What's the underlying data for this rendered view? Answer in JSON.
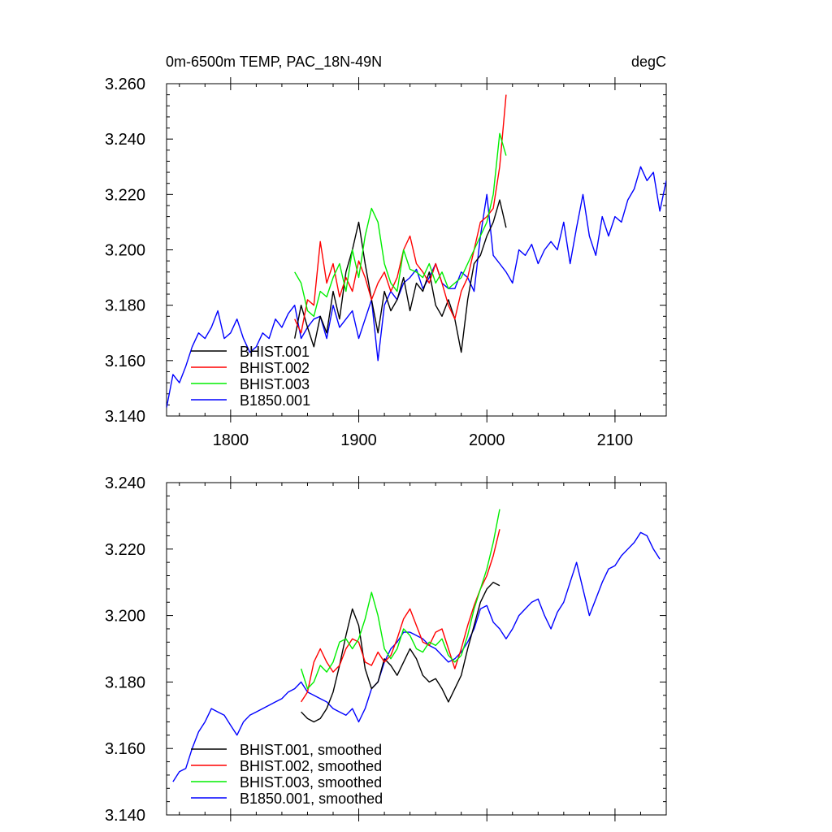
{
  "colors": {
    "BHIST.001": "#000000",
    "BHIST.002": "#ff0000",
    "BHIST.003": "#00ee00",
    "B1850.001": "#0000ff"
  },
  "chart_data": [
    {
      "type": "line",
      "title": "0m-6500m TEMP, PAC_18N-49N",
      "units": "degC",
      "xlim": [
        1750,
        2140
      ],
      "ylim": [
        3.14,
        3.26
      ],
      "x_ticks": [
        1800,
        1900,
        2000,
        2100
      ],
      "x_tick_labels": [
        "1800",
        "1900",
        "2000",
        "2100"
      ],
      "y_ticks": [
        3.14,
        3.16,
        3.18,
        3.2,
        3.22,
        3.24,
        3.26
      ],
      "y_tick_labels": [
        "3.140",
        "3.160",
        "3.180",
        "3.200",
        "3.220",
        "3.240",
        "3.260"
      ],
      "legend_position": "bottom-left",
      "series": [
        {
          "name": "BHIST.001",
          "x": [
            1850,
            1855,
            1860,
            1865,
            1870,
            1875,
            1880,
            1885,
            1890,
            1895,
            1900,
            1905,
            1910,
            1915,
            1920,
            1925,
            1930,
            1935,
            1940,
            1945,
            1950,
            1955,
            1960,
            1965,
            1970,
            1975,
            1980,
            1985,
            1990,
            1995,
            2000,
            2005,
            2010,
            2015
          ],
          "y": [
            3.168,
            3.18,
            3.172,
            3.165,
            3.176,
            3.17,
            3.185,
            3.175,
            3.192,
            3.2,
            3.21,
            3.195,
            3.182,
            3.17,
            3.185,
            3.178,
            3.182,
            3.19,
            3.178,
            3.188,
            3.185,
            3.192,
            3.18,
            3.176,
            3.182,
            3.175,
            3.163,
            3.182,
            3.195,
            3.198,
            3.205,
            3.21,
            3.218,
            3.208
          ]
        },
        {
          "name": "BHIST.002",
          "x": [
            1850,
            1855,
            1860,
            1865,
            1870,
            1875,
            1880,
            1885,
            1890,
            1895,
            1900,
            1905,
            1910,
            1915,
            1920,
            1925,
            1930,
            1935,
            1940,
            1945,
            1950,
            1955,
            1960,
            1965,
            1970,
            1975,
            1980,
            1985,
            1990,
            1995,
            2000,
            2005,
            2010,
            2015
          ],
          "y": [
            3.175,
            3.17,
            3.182,
            3.18,
            3.203,
            3.188,
            3.195,
            3.183,
            3.19,
            3.185,
            3.196,
            3.19,
            3.182,
            3.188,
            3.192,
            3.185,
            3.19,
            3.2,
            3.205,
            3.195,
            3.192,
            3.188,
            3.195,
            3.188,
            3.18,
            3.175,
            3.185,
            3.19,
            3.2,
            3.21,
            3.212,
            3.215,
            3.23,
            3.256
          ]
        },
        {
          "name": "BHIST.003",
          "x": [
            1850,
            1855,
            1860,
            1865,
            1870,
            1875,
            1880,
            1885,
            1890,
            1895,
            1900,
            1905,
            1910,
            1915,
            1920,
            1925,
            1930,
            1935,
            1940,
            1945,
            1950,
            1955,
            1960,
            1965,
            1970,
            1975,
            1980,
            1985,
            1990,
            1995,
            2000,
            2005,
            2010,
            2015
          ],
          "y": [
            3.192,
            3.188,
            3.178,
            3.176,
            3.185,
            3.183,
            3.19,
            3.195,
            3.185,
            3.2,
            3.19,
            3.205,
            3.215,
            3.21,
            3.195,
            3.188,
            3.185,
            3.2,
            3.193,
            3.192,
            3.19,
            3.195,
            3.188,
            3.192,
            3.186,
            3.188,
            3.19,
            3.195,
            3.2,
            3.205,
            3.21,
            3.22,
            3.242,
            3.234
          ]
        },
        {
          "name": "B1850.001",
          "x": [
            1750,
            1755,
            1760,
            1765,
            1770,
            1775,
            1780,
            1785,
            1790,
            1795,
            1800,
            1805,
            1810,
            1815,
            1820,
            1825,
            1830,
            1835,
            1840,
            1845,
            1850,
            1855,
            1860,
            1865,
            1870,
            1875,
            1880,
            1885,
            1890,
            1895,
            1900,
            1905,
            1910,
            1915,
            1920,
            1925,
            1930,
            1935,
            1940,
            1945,
            1950,
            1955,
            1960,
            1965,
            1970,
            1975,
            1980,
            1985,
            1990,
            1995,
            2000,
            2005,
            2010,
            2015,
            2020,
            2025,
            2030,
            2035,
            2040,
            2045,
            2050,
            2055,
            2060,
            2065,
            2070,
            2075,
            2080,
            2085,
            2090,
            2095,
            2100,
            2105,
            2110,
            2115,
            2120,
            2125,
            2130,
            2135,
            2140
          ],
          "y": [
            3.143,
            3.155,
            3.152,
            3.158,
            3.165,
            3.17,
            3.168,
            3.172,
            3.178,
            3.168,
            3.17,
            3.175,
            3.168,
            3.163,
            3.165,
            3.17,
            3.168,
            3.175,
            3.172,
            3.177,
            3.18,
            3.168,
            3.172,
            3.175,
            3.176,
            3.168,
            3.18,
            3.172,
            3.175,
            3.178,
            3.168,
            3.175,
            3.182,
            3.16,
            3.18,
            3.185,
            3.182,
            3.188,
            3.19,
            3.193,
            3.186,
            3.19,
            3.195,
            3.188,
            3.186,
            3.186,
            3.192,
            3.19,
            3.185,
            3.205,
            3.22,
            3.198,
            3.195,
            3.192,
            3.188,
            3.2,
            3.198,
            3.202,
            3.195,
            3.2,
            3.203,
            3.2,
            3.21,
            3.195,
            3.208,
            3.22,
            3.205,
            3.198,
            3.212,
            3.205,
            3.212,
            3.21,
            3.218,
            3.222,
            3.23,
            3.225,
            3.228,
            3.214,
            3.225
          ]
        }
      ]
    },
    {
      "type": "line",
      "xlim": [
        1750,
        2140
      ],
      "ylim": [
        3.14,
        3.24
      ],
      "x_ticks": [
        1800,
        1900,
        2000,
        2100
      ],
      "y_ticks": [
        3.14,
        3.16,
        3.18,
        3.2,
        3.22,
        3.24
      ],
      "y_tick_labels": [
        "3.140",
        "3.160",
        "3.180",
        "3.200",
        "3.220",
        "3.240"
      ],
      "legend_position": "bottom-left",
      "series": [
        {
          "name": "BHIST.001, smoothed",
          "x": [
            1855,
            1860,
            1865,
            1870,
            1875,
            1880,
            1885,
            1890,
            1895,
            1900,
            1905,
            1910,
            1915,
            1920,
            1925,
            1930,
            1935,
            1940,
            1945,
            1950,
            1955,
            1960,
            1965,
            1970,
            1975,
            1980,
            1985,
            1990,
            1995,
            2000,
            2005,
            2010
          ],
          "y": [
            3.171,
            3.169,
            3.168,
            3.169,
            3.172,
            3.177,
            3.185,
            3.194,
            3.202,
            3.197,
            3.184,
            3.178,
            3.18,
            3.187,
            3.185,
            3.182,
            3.186,
            3.19,
            3.187,
            3.182,
            3.18,
            3.181,
            3.178,
            3.174,
            3.178,
            3.182,
            3.19,
            3.197,
            3.204,
            3.208,
            3.21,
            3.209
          ]
        },
        {
          "name": "BHIST.002, smoothed",
          "x": [
            1855,
            1860,
            1865,
            1870,
            1875,
            1880,
            1885,
            1890,
            1895,
            1900,
            1905,
            1910,
            1915,
            1920,
            1925,
            1930,
            1935,
            1940,
            1945,
            1950,
            1955,
            1960,
            1965,
            1970,
            1975,
            1980,
            1985,
            1990,
            1995,
            2000,
            2005,
            2010
          ],
          "y": [
            3.174,
            3.177,
            3.186,
            3.19,
            3.186,
            3.183,
            3.185,
            3.19,
            3.193,
            3.192,
            3.186,
            3.185,
            3.189,
            3.186,
            3.188,
            3.193,
            3.199,
            3.202,
            3.197,
            3.192,
            3.191,
            3.195,
            3.196,
            3.19,
            3.184,
            3.19,
            3.197,
            3.203,
            3.208,
            3.212,
            3.218,
            3.226
          ]
        },
        {
          "name": "BHIST.003, smoothed",
          "x": [
            1855,
            1860,
            1865,
            1870,
            1875,
            1880,
            1885,
            1890,
            1895,
            1900,
            1905,
            1910,
            1915,
            1920,
            1925,
            1930,
            1935,
            1940,
            1945,
            1950,
            1955,
            1960,
            1965,
            1970,
            1975,
            1980,
            1985,
            1990,
            1995,
            2000,
            2005,
            2010
          ],
          "y": [
            3.184,
            3.178,
            3.18,
            3.185,
            3.183,
            3.186,
            3.192,
            3.193,
            3.19,
            3.193,
            3.199,
            3.207,
            3.2,
            3.19,
            3.187,
            3.19,
            3.196,
            3.194,
            3.19,
            3.189,
            3.192,
            3.191,
            3.193,
            3.188,
            3.186,
            3.188,
            3.194,
            3.202,
            3.208,
            3.214,
            3.222,
            3.232
          ]
        },
        {
          "name": "B1850.001, smoothed",
          "x": [
            1755,
            1760,
            1765,
            1770,
            1775,
            1780,
            1785,
            1790,
            1795,
            1800,
            1805,
            1810,
            1815,
            1820,
            1825,
            1830,
            1835,
            1840,
            1845,
            1850,
            1855,
            1860,
            1865,
            1870,
            1875,
            1880,
            1885,
            1890,
            1895,
            1900,
            1905,
            1910,
            1915,
            1920,
            1925,
            1930,
            1935,
            1940,
            1945,
            1950,
            1955,
            1960,
            1965,
            1970,
            1975,
            1980,
            1985,
            1990,
            1995,
            2000,
            2005,
            2010,
            2015,
            2020,
            2025,
            2030,
            2035,
            2040,
            2045,
            2050,
            2055,
            2060,
            2065,
            2070,
            2075,
            2080,
            2085,
            2090,
            2095,
            2100,
            2105,
            2110,
            2115,
            2120,
            2125,
            2130,
            2135
          ],
          "y": [
            3.15,
            3.153,
            3.154,
            3.16,
            3.165,
            3.168,
            3.172,
            3.171,
            3.17,
            3.167,
            3.164,
            3.168,
            3.17,
            3.171,
            3.172,
            3.173,
            3.174,
            3.175,
            3.177,
            3.178,
            3.18,
            3.177,
            3.176,
            3.175,
            3.174,
            3.172,
            3.171,
            3.17,
            3.172,
            3.168,
            3.172,
            3.178,
            3.18,
            3.186,
            3.19,
            3.192,
            3.195,
            3.195,
            3.194,
            3.193,
            3.191,
            3.19,
            3.188,
            3.186,
            3.187,
            3.189,
            3.192,
            3.196,
            3.202,
            3.203,
            3.198,
            3.196,
            3.193,
            3.196,
            3.2,
            3.202,
            3.204,
            3.205,
            3.2,
            3.196,
            3.201,
            3.204,
            3.21,
            3.216,
            3.208,
            3.2,
            3.205,
            3.21,
            3.214,
            3.215,
            3.218,
            3.22,
            3.222,
            3.225,
            3.224,
            3.22,
            3.217
          ]
        }
      ]
    }
  ]
}
